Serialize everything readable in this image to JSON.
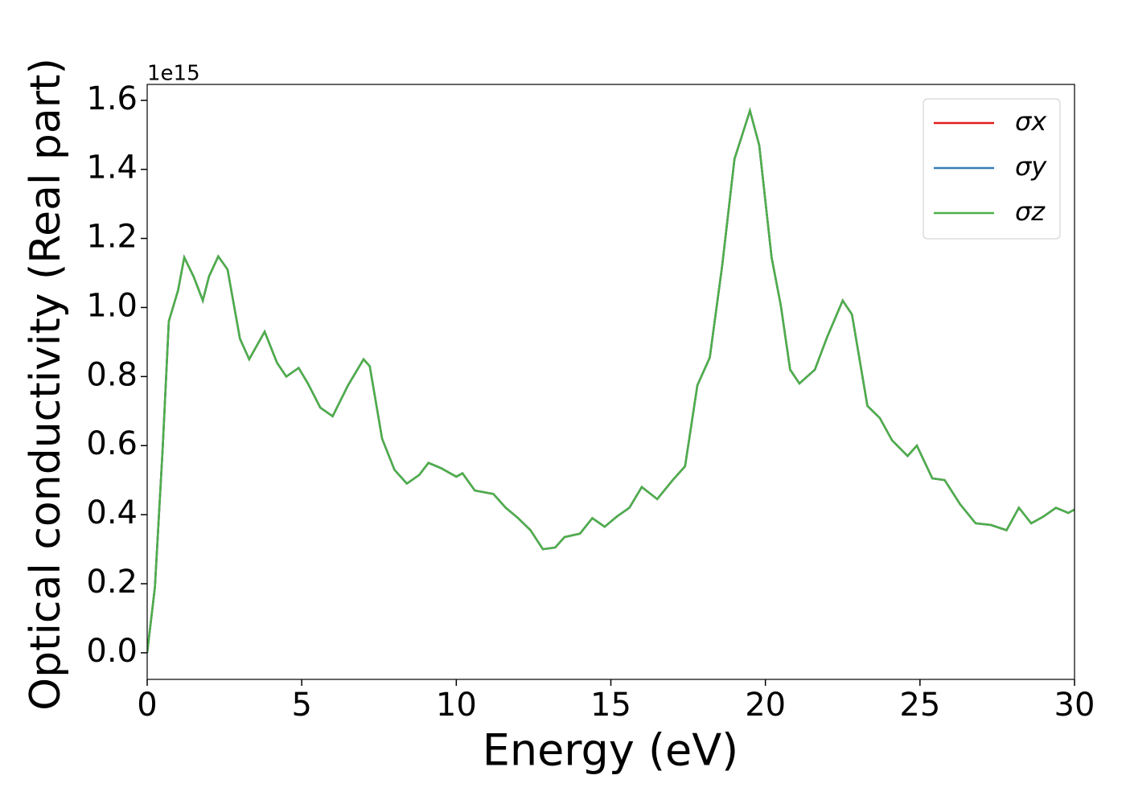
{
  "chart_data": {
    "type": "line",
    "x_label": "Energy (eV)",
    "y_label": "Optical conductivity (Real part)",
    "y_offset_text": "1e15",
    "x": [
      0,
      0.25,
      0.5,
      0.7,
      1.0,
      1.2,
      1.5,
      1.8,
      2.0,
      2.3,
      2.6,
      3.0,
      3.3,
      3.8,
      4.2,
      4.5,
      4.9,
      5.2,
      5.6,
      6.0,
      6.5,
      7.0,
      7.2,
      7.6,
      8.0,
      8.4,
      8.8,
      9.1,
      9.5,
      10.0,
      10.2,
      10.6,
      11.2,
      11.6,
      12.0,
      12.4,
      12.8,
      13.2,
      13.5,
      14.0,
      14.4,
      14.8,
      15.2,
      15.6,
      16.0,
      16.5,
      17.0,
      17.4,
      17.8,
      18.2,
      18.6,
      19.0,
      19.5,
      19.8,
      20.2,
      20.5,
      20.8,
      21.1,
      21.6,
      22.0,
      22.5,
      22.8,
      23.3,
      23.7,
      24.1,
      24.6,
      24.9,
      25.4,
      25.8,
      26.3,
      26.8,
      27.3,
      27.8,
      28.2,
      28.6,
      29.0,
      29.4,
      29.8,
      30.0
    ],
    "series": [
      {
        "name": "σx",
        "color": "#e41a1c",
        "values": [
          0.0,
          0.19,
          0.59,
          0.96,
          1.05,
          1.145,
          1.09,
          1.02,
          1.09,
          1.148,
          1.11,
          0.91,
          0.85,
          0.93,
          0.84,
          0.8,
          0.825,
          0.78,
          0.71,
          0.685,
          0.775,
          0.85,
          0.83,
          0.62,
          0.53,
          0.49,
          0.515,
          0.55,
          0.535,
          0.51,
          0.52,
          0.47,
          0.46,
          0.42,
          0.39,
          0.355,
          0.3,
          0.305,
          0.335,
          0.345,
          0.39,
          0.365,
          0.395,
          0.42,
          0.48,
          0.445,
          0.5,
          0.54,
          0.775,
          0.855,
          1.12,
          1.43,
          1.57,
          1.47,
          1.145,
          1.005,
          0.82,
          0.78,
          0.82,
          0.915,
          1.02,
          0.98,
          0.715,
          0.68,
          0.615,
          0.57,
          0.6,
          0.505,
          0.5,
          0.43,
          0.375,
          0.37,
          0.355,
          0.42,
          0.375,
          0.395,
          0.42,
          0.405,
          0.415
        ]
      },
      {
        "name": "σy",
        "color": "#377eb8",
        "values": [
          0.0,
          0.19,
          0.59,
          0.96,
          1.05,
          1.145,
          1.09,
          1.02,
          1.09,
          1.148,
          1.11,
          0.91,
          0.85,
          0.93,
          0.84,
          0.8,
          0.825,
          0.78,
          0.71,
          0.685,
          0.775,
          0.85,
          0.83,
          0.62,
          0.53,
          0.49,
          0.515,
          0.55,
          0.535,
          0.51,
          0.52,
          0.47,
          0.46,
          0.42,
          0.39,
          0.355,
          0.3,
          0.305,
          0.335,
          0.345,
          0.39,
          0.365,
          0.395,
          0.42,
          0.48,
          0.445,
          0.5,
          0.54,
          0.775,
          0.855,
          1.12,
          1.43,
          1.57,
          1.47,
          1.145,
          1.005,
          0.82,
          0.78,
          0.82,
          0.915,
          1.02,
          0.98,
          0.715,
          0.68,
          0.615,
          0.57,
          0.6,
          0.505,
          0.5,
          0.43,
          0.375,
          0.37,
          0.355,
          0.42,
          0.375,
          0.395,
          0.42,
          0.405,
          0.415
        ]
      },
      {
        "name": "σz",
        "color": "#4daf4a",
        "values": [
          0.0,
          0.19,
          0.59,
          0.96,
          1.05,
          1.145,
          1.09,
          1.02,
          1.09,
          1.148,
          1.11,
          0.91,
          0.85,
          0.93,
          0.84,
          0.8,
          0.825,
          0.78,
          0.71,
          0.685,
          0.775,
          0.85,
          0.83,
          0.62,
          0.53,
          0.49,
          0.515,
          0.55,
          0.535,
          0.51,
          0.52,
          0.47,
          0.46,
          0.42,
          0.39,
          0.355,
          0.3,
          0.305,
          0.335,
          0.345,
          0.39,
          0.365,
          0.395,
          0.42,
          0.48,
          0.445,
          0.5,
          0.54,
          0.775,
          0.855,
          1.12,
          1.43,
          1.57,
          1.47,
          1.145,
          1.005,
          0.82,
          0.78,
          0.82,
          0.915,
          1.02,
          0.98,
          0.715,
          0.68,
          0.615,
          0.57,
          0.6,
          0.505,
          0.5,
          0.43,
          0.375,
          0.37,
          0.355,
          0.42,
          0.375,
          0.395,
          0.42,
          0.405,
          0.415
        ]
      }
    ],
    "xlim": [
      0,
      30
    ],
    "xticks": [
      0,
      5,
      10,
      15,
      20,
      25,
      30
    ],
    "ylim": [
      -0.077,
      1.646
    ],
    "yticks": [
      {
        "value": 0,
        "label": "0.0"
      },
      0.2,
      0.4,
      0.6,
      0.8,
      {
        "value": 1,
        "label": "1.0"
      },
      1.2,
      1.4,
      1.6
    ],
    "legend": "upper right",
    "grid": false
  }
}
